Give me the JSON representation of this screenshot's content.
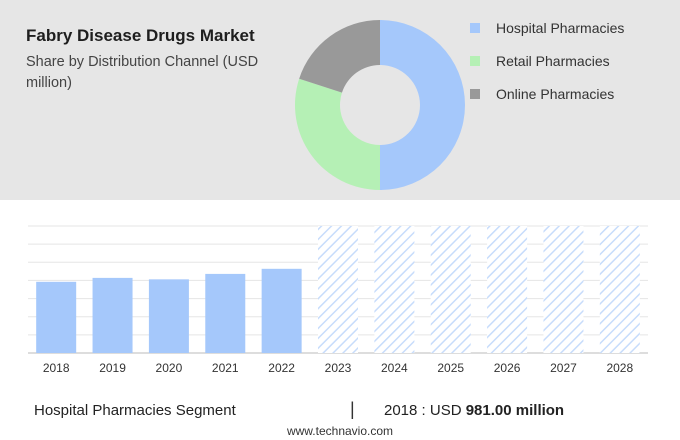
{
  "header": {
    "title": "Fabry Disease Drugs Market",
    "subtitle": "Share by Distribution Channel (USD million)"
  },
  "chart_data": [
    {
      "type": "pie",
      "donut": true,
      "labels": [
        "Hospital Pharmacies",
        "Retail Pharmacies",
        "Online Pharmacies"
      ],
      "values": [
        50,
        30,
        20
      ],
      "colors": [
        "#a5c8fb",
        "#b5f0b5",
        "#999999"
      ],
      "legend": "right"
    },
    {
      "type": "bar",
      "categories": [
        "2018",
        "2019",
        "2020",
        "2021",
        "2022",
        "2023",
        "2024",
        "2025",
        "2026",
        "2027",
        "2028"
      ],
      "series": [
        {
          "values": [
            981,
            1035,
            1015,
            1090,
            1160,
            null,
            null,
            null,
            null,
            null,
            null
          ],
          "color": "#a5c8fb"
        }
      ],
      "forecast_categories": [
        "2023",
        "2024",
        "2025",
        "2026",
        "2027",
        "2028"
      ],
      "ylim": [
        0,
        1750
      ],
      "grid": true
    }
  ],
  "footer": {
    "segment_label": "Hospital Pharmacies Segment",
    "separator": "|",
    "value_prefix": "2018 : USD",
    "value_amount": "981.00 million",
    "source": "www.technavio.com"
  }
}
